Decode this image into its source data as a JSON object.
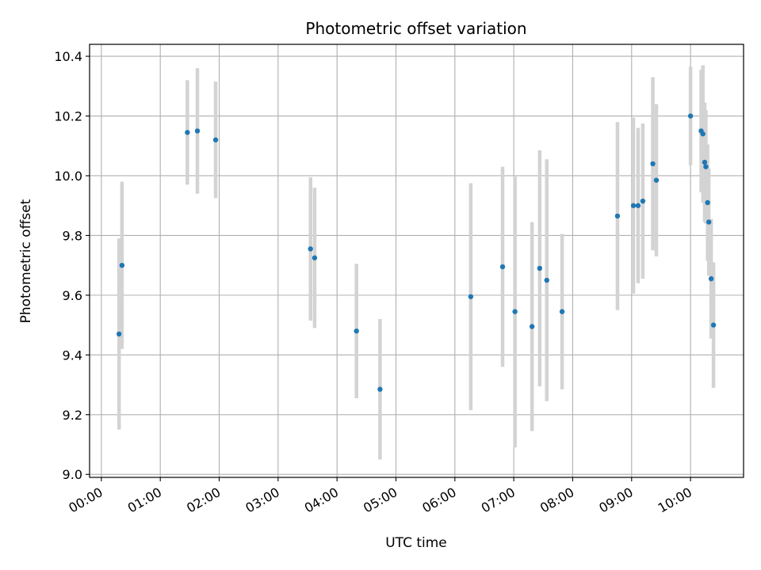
{
  "chart_data": {
    "type": "scatter",
    "title": "Photometric offset variation",
    "xlabel": "UTC time",
    "ylabel": "Photometric offset",
    "x_unit": "hours UTC",
    "xlim": [
      -0.2,
      10.9
    ],
    "ylim": [
      8.99,
      10.44
    ],
    "x_ticks": [
      {
        "value": 0,
        "label": "00:00"
      },
      {
        "value": 1,
        "label": "01:00"
      },
      {
        "value": 2,
        "label": "02:00"
      },
      {
        "value": 3,
        "label": "03:00"
      },
      {
        "value": 4,
        "label": "04:00"
      },
      {
        "value": 5,
        "label": "05:00"
      },
      {
        "value": 6,
        "label": "06:00"
      },
      {
        "value": 7,
        "label": "07:00"
      },
      {
        "value": 8,
        "label": "08:00"
      },
      {
        "value": 9,
        "label": "09:00"
      },
      {
        "value": 10,
        "label": "10:00"
      }
    ],
    "y_ticks": [
      {
        "value": 9.0,
        "label": "9.0"
      },
      {
        "value": 9.2,
        "label": "9.2"
      },
      {
        "value": 9.4,
        "label": "9.4"
      },
      {
        "value": 9.6,
        "label": "9.6"
      },
      {
        "value": 9.8,
        "label": "9.8"
      },
      {
        "value": 10.0,
        "label": "10.0"
      },
      {
        "value": 10.2,
        "label": "10.2"
      },
      {
        "value": 10.4,
        "label": "10.4"
      }
    ],
    "grid": true,
    "marker_color": "#1f77b4",
    "errorbar_color": "#d3d3d3",
    "points": [
      {
        "x": 0.3,
        "y": 9.47,
        "err": 0.32
      },
      {
        "x": 0.35,
        "y": 9.7,
        "err": 0.28
      },
      {
        "x": 1.46,
        "y": 10.145,
        "err": 0.175
      },
      {
        "x": 1.63,
        "y": 10.15,
        "err": 0.21
      },
      {
        "x": 1.94,
        "y": 10.12,
        "err": 0.195
      },
      {
        "x": 3.55,
        "y": 9.755,
        "err": 0.24
      },
      {
        "x": 3.62,
        "y": 9.725,
        "err": 0.235
      },
      {
        "x": 4.33,
        "y": 9.48,
        "err": 0.225
      },
      {
        "x": 4.73,
        "y": 9.285,
        "err": 0.235
      },
      {
        "x": 6.27,
        "y": 9.595,
        "err": 0.38
      },
      {
        "x": 6.81,
        "y": 9.695,
        "err": 0.335
      },
      {
        "x": 7.02,
        "y": 9.545,
        "err": 0.455
      },
      {
        "x": 7.31,
        "y": 9.495,
        "err": 0.35
      },
      {
        "x": 7.44,
        "y": 9.69,
        "err": 0.395
      },
      {
        "x": 7.56,
        "y": 9.65,
        "err": 0.405
      },
      {
        "x": 7.82,
        "y": 9.545,
        "err": 0.26
      },
      {
        "x": 8.76,
        "y": 9.865,
        "err": 0.315
      },
      {
        "x": 9.03,
        "y": 9.9,
        "err": 0.295
      },
      {
        "x": 9.11,
        "y": 9.9,
        "err": 0.26
      },
      {
        "x": 9.19,
        "y": 9.915,
        "err": 0.26
      },
      {
        "x": 9.36,
        "y": 10.04,
        "err": 0.29
      },
      {
        "x": 9.42,
        "y": 9.985,
        "err": 0.255
      },
      {
        "x": 10.0,
        "y": 10.2,
        "err": 0.165
      },
      {
        "x": 10.18,
        "y": 10.15,
        "err": 0.205
      },
      {
        "x": 10.21,
        "y": 10.14,
        "err": 0.23
      },
      {
        "x": 10.24,
        "y": 10.045,
        "err": 0.2
      },
      {
        "x": 10.26,
        "y": 10.03,
        "err": 0.19
      },
      {
        "x": 10.29,
        "y": 9.91,
        "err": 0.195
      },
      {
        "x": 10.31,
        "y": 9.845,
        "err": 0.18
      },
      {
        "x": 10.35,
        "y": 9.655,
        "err": 0.2
      },
      {
        "x": 10.39,
        "y": 9.5,
        "err": 0.21
      }
    ]
  }
}
